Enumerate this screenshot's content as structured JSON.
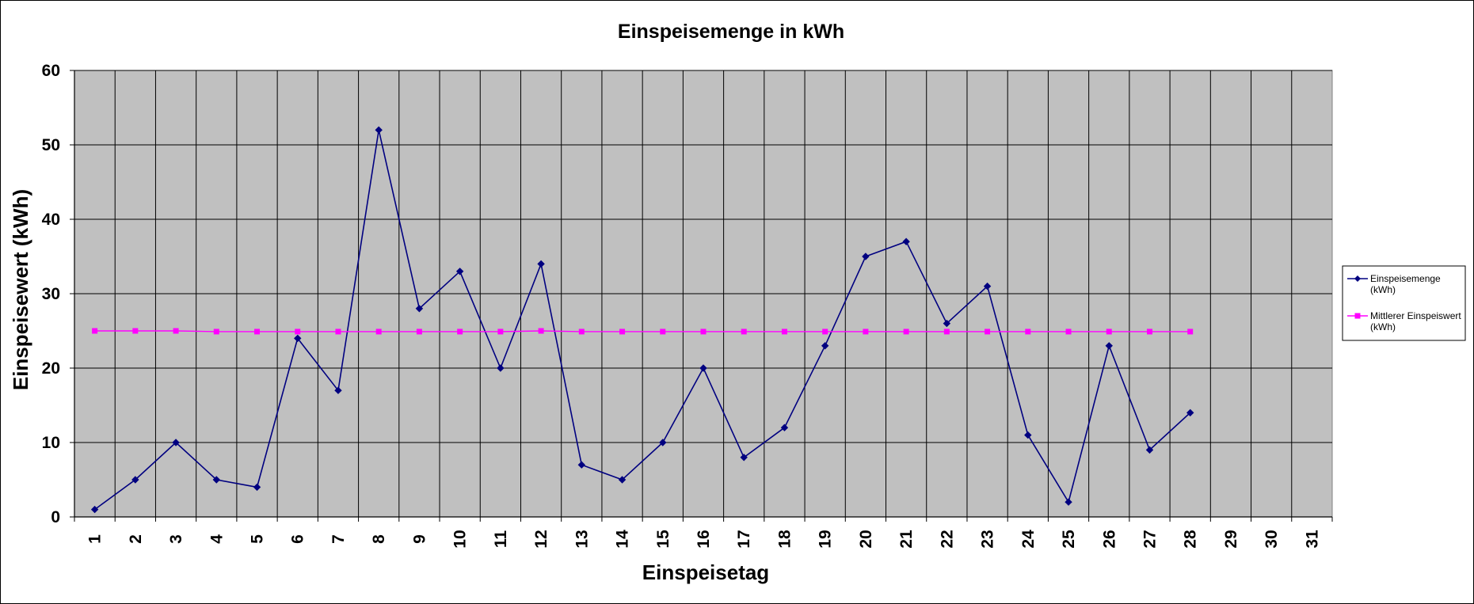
{
  "chart_data": {
    "type": "line",
    "title": "Einspeisemenge in kWh",
    "xlabel": "Einspeisetag",
    "ylabel": "Einspeisewert  (kWh)",
    "categories": [
      "1",
      "2",
      "3",
      "4",
      "5",
      "6",
      "7",
      "8",
      "9",
      "10",
      "11",
      "12",
      "13",
      "14",
      "15",
      "16",
      "17",
      "18",
      "19",
      "20",
      "21",
      "22",
      "23",
      "24",
      "25",
      "26",
      "27",
      "28",
      "29",
      "30",
      "31"
    ],
    "ylim": [
      0,
      60
    ],
    "yticks": [
      0,
      10,
      20,
      30,
      40,
      50,
      60
    ],
    "grid": true,
    "legend_position": "right",
    "plot_background": "#c0c0c0",
    "series": [
      {
        "name": "Einspeisemenge (kWh)",
        "legend_lines": [
          "Einspeisemenge",
          "(kWh)"
        ],
        "color": "#000080",
        "marker": "diamond",
        "values": [
          1,
          5,
          10,
          5,
          4,
          24,
          17,
          52,
          28,
          33,
          20,
          34,
          7,
          5,
          10,
          20,
          8,
          12,
          23,
          35,
          37,
          26,
          31,
          11,
          2,
          23,
          9,
          14,
          null,
          null,
          null
        ]
      },
      {
        "name": "Mittlerer Einspeiswert (kWh)",
        "legend_lines": [
          "Mittlerer Einspeiswert",
          "(kWh)"
        ],
        "color": "#ff00ff",
        "marker": "square",
        "values": [
          25,
          25,
          25,
          24.9,
          24.9,
          24.9,
          24.9,
          24.9,
          24.9,
          24.9,
          24.9,
          25,
          24.9,
          24.9,
          24.9,
          24.9,
          24.9,
          24.9,
          24.9,
          24.9,
          24.9,
          24.9,
          24.9,
          24.9,
          24.9,
          24.9,
          24.9,
          24.9,
          null,
          null,
          null
        ]
      }
    ]
  }
}
